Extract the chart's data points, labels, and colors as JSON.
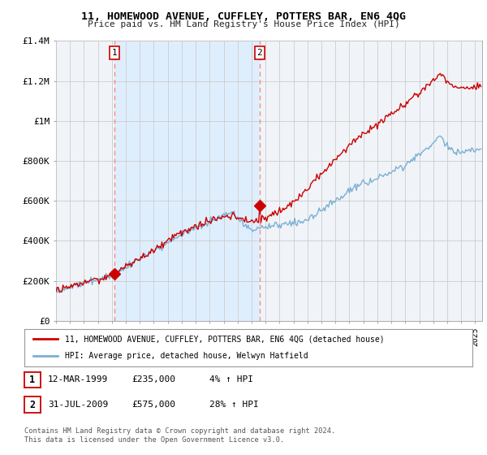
{
  "title": "11, HOMEWOOD AVENUE, CUFFLEY, POTTERS BAR, EN6 4QG",
  "subtitle": "Price paid vs. HM Land Registry's House Price Index (HPI)",
  "ylim": [
    0,
    1400000
  ],
  "yticks": [
    0,
    200000,
    400000,
    600000,
    800000,
    1000000,
    1200000,
    1400000
  ],
  "ytick_labels": [
    "£0",
    "£200K",
    "£400K",
    "£600K",
    "£800K",
    "£1M",
    "£1.2M",
    "£1.4M"
  ],
  "xlim_start": 1995,
  "xlim_end": 2025.5,
  "sale1_date": 1999.19,
  "sale1_price": 235000,
  "sale2_date": 2009.58,
  "sale2_price": 575000,
  "legend_line1": "11, HOMEWOOD AVENUE, CUFFLEY, POTTERS BAR, EN6 4QG (detached house)",
  "legend_line2": "HPI: Average price, detached house, Welwyn Hatfield",
  "ann1_date": "12-MAR-1999",
  "ann1_price": "£235,000",
  "ann1_hpi": "4% ↑ HPI",
  "ann2_date": "31-JUL-2009",
  "ann2_price": "£575,000",
  "ann2_hpi": "28% ↑ HPI",
  "footer": "Contains HM Land Registry data © Crown copyright and database right 2024.\nThis data is licensed under the Open Government Licence v3.0.",
  "line_color_red": "#CC0000",
  "line_color_blue": "#7BAFD4",
  "vline_color": "#FF8888",
  "marker_color_red": "#CC0000",
  "shade_color": "#DDEEFF",
  "background_color": "#F0F4F8",
  "grid_color": "#CCCCCC",
  "chart_bg": "#EEF3F8"
}
